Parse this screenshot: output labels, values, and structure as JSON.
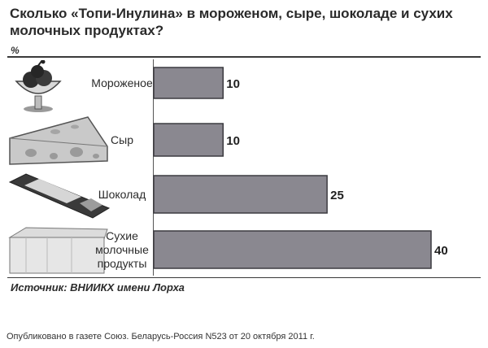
{
  "title": "Сколько «Топи-Инулина» в мороженом, сыре, шоколаде и сухих молочных продуктах?",
  "unit": "%",
  "source": "Источник: ВНИИКХ имени Лорха",
  "published": "Опубликовано в газете Союз. Беларусь-Россия N523 от 20 октября 2011 г.",
  "colors": {
    "bar": "#8a8890",
    "bar_edge": "#3c3b40"
  },
  "icons": [
    "ice-cream-icon",
    "cheese-icon",
    "chocolate-bar-icon",
    "dry-milk-box-icon"
  ],
  "chart_data": {
    "type": "bar",
    "orientation": "horizontal",
    "categories": [
      [
        "Мороженое"
      ],
      [
        "Сыр"
      ],
      [
        "Шоколад"
      ],
      [
        "Сухие",
        "молочные",
        "продукты"
      ]
    ],
    "values": [
      10,
      10,
      25,
      40
    ],
    "value_labels": [
      "10",
      "10",
      "25",
      "40"
    ],
    "xlim": [
      0,
      40
    ],
    "grid": false,
    "legend": "none"
  }
}
